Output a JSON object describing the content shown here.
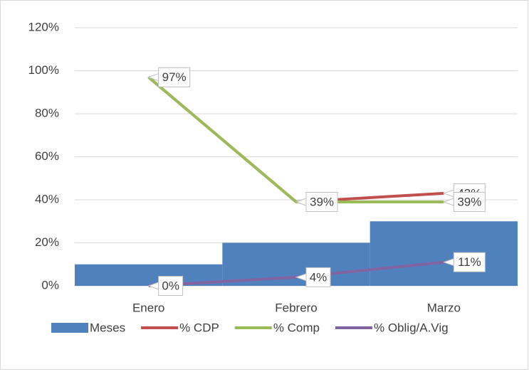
{
  "chart_data": {
    "type": "combo",
    "categories": [
      "Enero",
      "Febrero",
      "Marzo"
    ],
    "series": [
      {
        "name": "Meses",
        "type": "bar",
        "color": "#4f81bd",
        "values": [
          10,
          20,
          30
        ]
      },
      {
        "name": "% CDP",
        "type": "line",
        "color": "#c0504d",
        "values": [
          97,
          39,
          43
        ],
        "value_labels": [
          "97%",
          "39%",
          "43%"
        ]
      },
      {
        "name": "% Comp",
        "type": "line",
        "color": "#9bbb59",
        "values": [
          97,
          39,
          39
        ],
        "value_labels": [
          "97%",
          "39%",
          "39%"
        ]
      },
      {
        "name": "% Oblig/A.Vig",
        "type": "line",
        "color": "#8064a2",
        "values": [
          0,
          4,
          11
        ],
        "value_labels": [
          "0%",
          "4%",
          "11%"
        ]
      }
    ],
    "ylim": [
      0,
      120
    ],
    "yticks": [
      {
        "value": 0,
        "label": "0%"
      },
      {
        "value": 20,
        "label": "20%"
      },
      {
        "value": 40,
        "label": "40%"
      },
      {
        "value": 60,
        "label": "60%"
      },
      {
        "value": 80,
        "label": "80%"
      },
      {
        "value": 100,
        "label": "100%"
      },
      {
        "value": 120,
        "label": "120%"
      }
    ],
    "grid": true,
    "legend": "bottom"
  }
}
